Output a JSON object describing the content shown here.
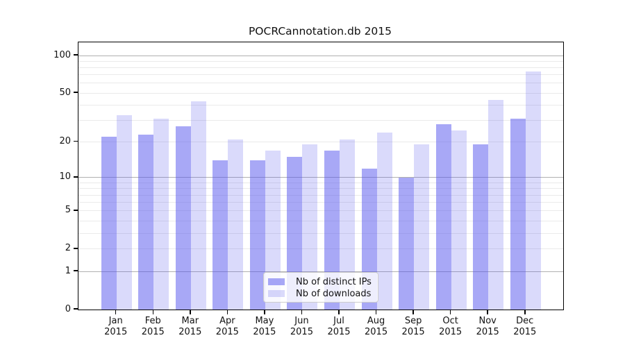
{
  "title": "POCRCannotation.db 2015",
  "chart_data": {
    "type": "bar",
    "title": "POCRCannotation.db 2015",
    "categories": [
      "Jan",
      "Feb",
      "Mar",
      "Apr",
      "May",
      "Jun",
      "Jul",
      "Aug",
      "Sep",
      "Oct",
      "Nov",
      "Dec"
    ],
    "category_year": "2015",
    "series": [
      {
        "name": "Nb of distinct IPs",
        "base_color": "#5555ee",
        "alpha": 0.51,
        "values": [
          22,
          23,
          27,
          14,
          14,
          15,
          17,
          12,
          10,
          28,
          19,
          31
        ]
      },
      {
        "name": "Nb of downloads",
        "base_color": "#5555ee",
        "alpha": 0.22,
        "values": [
          33,
          31,
          43,
          21,
          17,
          19,
          21,
          24,
          19,
          25,
          44,
          75
        ]
      }
    ],
    "xlabel": "",
    "ylabel": "",
    "yscale": "log1p",
    "ylim": [
      0,
      128
    ],
    "yticks": [
      0,
      1,
      2,
      5,
      10,
      20,
      50,
      100
    ],
    "ytick_labels": [
      "0",
      "1",
      "2",
      "5",
      "10",
      "20",
      "50",
      "100"
    ],
    "grid": true,
    "major_gridlines": [
      1,
      10,
      100
    ],
    "minor_gridlines": [
      2,
      3,
      4,
      5,
      6,
      7,
      8,
      9,
      20,
      30,
      40,
      50,
      60,
      70,
      80,
      90
    ],
    "major_grid_color": "#b0b0b0",
    "minor_grid_color": "#eaeaea",
    "legend_position": "lower center"
  },
  "legend": {
    "items": [
      {
        "label": "Nb of distinct IPs"
      },
      {
        "label": "Nb of downloads"
      }
    ]
  }
}
